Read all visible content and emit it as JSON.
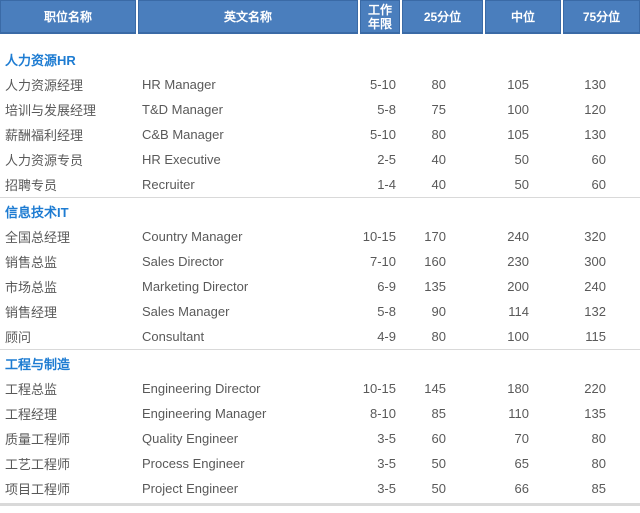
{
  "colors": {
    "header_bg": "#4A7EBD",
    "header_border": "#3A6AA6",
    "header_text": "#FFFFFF",
    "section_title_text": "#1E7CD2",
    "body_text": "#595959",
    "divider": "#D9D9D9"
  },
  "table": {
    "headers": [
      "职位名称",
      "英文名称",
      "工作年限",
      "25分位",
      "中位",
      "75分位"
    ],
    "sections": [
      {
        "title": "人力资源HR",
        "rows": [
          [
            "人力资源经理",
            "HR Manager",
            "5-10",
            "80",
            "105",
            "130"
          ],
          [
            "培训与发展经理",
            "T&D Manager",
            "5-8",
            "75",
            "100",
            "120"
          ],
          [
            "薪酬福利经理",
            "C&B Manager",
            "5-10",
            "80",
            "105",
            "130"
          ],
          [
            "人力资源专员",
            "HR Executive",
            "2-5",
            "40",
            "50",
            "60"
          ],
          [
            "招聘专员",
            "Recruiter",
            "1-4",
            "40",
            "50",
            "60"
          ]
        ]
      },
      {
        "title": "信息技术IT",
        "rows": [
          [
            "全国总经理",
            "Country Manager",
            "10-15",
            "170",
            "240",
            "320"
          ],
          [
            "销售总监",
            "Sales Director",
            "7-10",
            "160",
            "230",
            "300"
          ],
          [
            "市场总监",
            "Marketing Director",
            "6-9",
            "135",
            "200",
            "240"
          ],
          [
            "销售经理",
            "Sales Manager",
            "5-8",
            "90",
            "114",
            "132"
          ],
          [
            "顾问",
            "Consultant",
            "4-9",
            "80",
            "100",
            "115"
          ]
        ]
      },
      {
        "title": "工程与制造",
        "rows": [
          [
            "工程总监",
            "Engineering Director",
            "10-15",
            "145",
            "180",
            "220"
          ],
          [
            "工程经理",
            "Engineering Manager",
            "8-10",
            "85",
            "110",
            "135"
          ],
          [
            "质量工程师",
            "Quality Engineer",
            "3-5",
            "60",
            "70",
            "80"
          ],
          [
            "工艺工程师",
            "Process Engineer",
            "3-5",
            "50",
            "65",
            "80"
          ],
          [
            "项目工程师",
            "Project Engineer",
            "3-5",
            "50",
            "66",
            "85"
          ]
        ]
      }
    ]
  }
}
